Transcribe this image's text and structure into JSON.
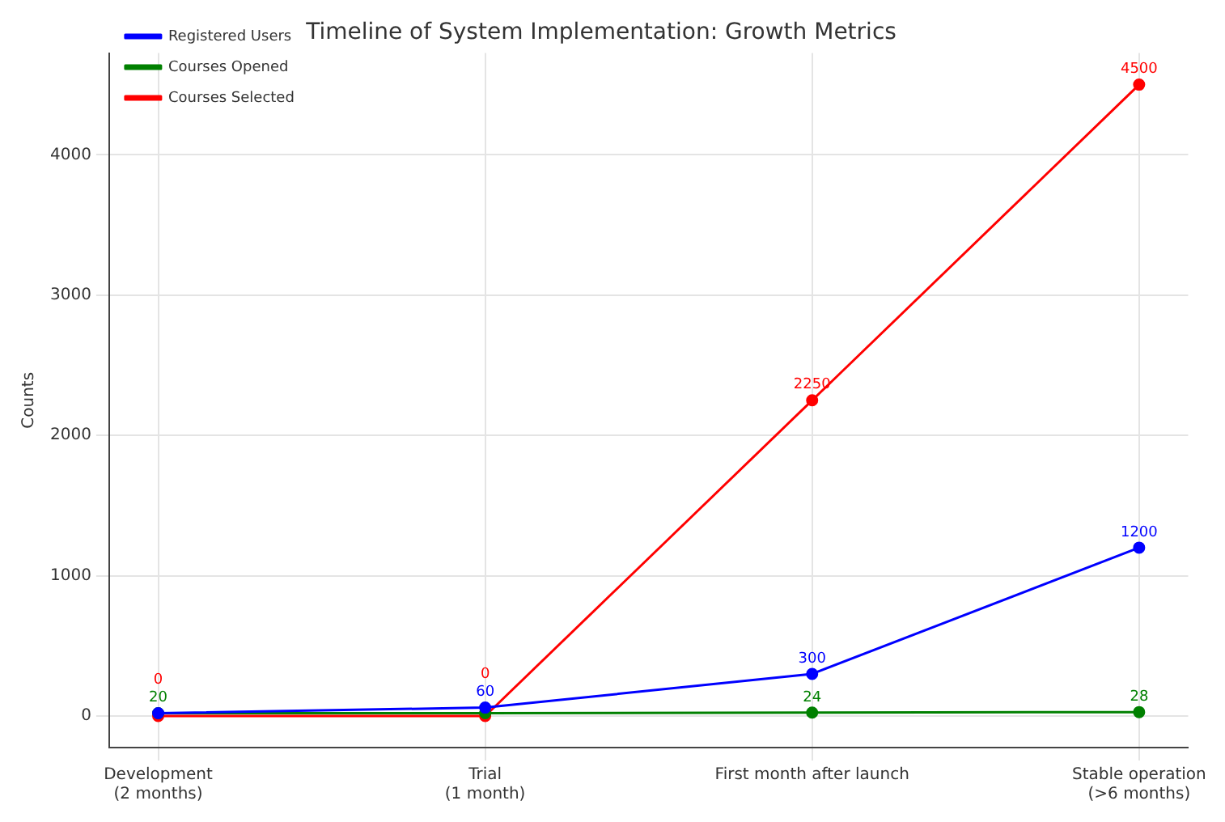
{
  "chart_data": {
    "type": "line",
    "title": "Timeline of System Implementation: Growth Metrics",
    "ylabel": "Counts",
    "categories": [
      "Development\n(2 months)",
      "Trial\n(1 month)",
      "First month after launch",
      "Stable operation\n(>6 months)"
    ],
    "series": [
      {
        "name": "Registered Users",
        "color": "#0000ff",
        "values": [
          20,
          60,
          300,
          1200
        ],
        "value_labels": [
          null,
          "60",
          "300",
          "1200"
        ]
      },
      {
        "name": "Courses Opened",
        "color": "#008000",
        "values": [
          20,
          20,
          24,
          28
        ],
        "value_labels": [
          "20",
          null,
          "24",
          "28"
        ]
      },
      {
        "name": "Courses Selected",
        "color": "#ff0000",
        "values": [
          0,
          0,
          2250,
          4500
        ],
        "value_labels": [
          "0",
          "0",
          "2250",
          "4500"
        ]
      }
    ],
    "ylim": [
      -225,
      4725
    ],
    "yticks": [
      0,
      1000,
      2000,
      3000,
      4000
    ],
    "grid": true,
    "legend": "top left",
    "marker": "circle",
    "line_style": "solid"
  }
}
